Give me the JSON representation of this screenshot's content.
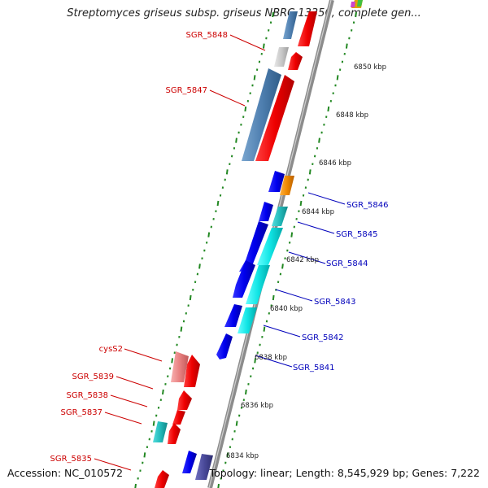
{
  "title": "Streptomyces griseus subsp. griseus NBRC 13350, complete gen...",
  "footer": {
    "accession": "Accession: NC_010572",
    "summary": "Topology: linear; Length: 8,545,929 bp; Genes: 7,222"
  },
  "colors": {
    "label_left": "#cc0000",
    "label_right": "#0000bb",
    "backbone": "#8c8c8c",
    "tick": "#228822",
    "red_gene": "#ee0000",
    "blue_gene": "#0000ee",
    "steel_gene": "#4f7fb0",
    "cyan_gene": "#11dddd",
    "teal_gene": "#22bbbb",
    "pink_gene": "#e88080",
    "orange_gene": "#ee8800",
    "gray_gene": "#c8c8c8",
    "indigo_gene": "#4a4a9a"
  },
  "scale_labels": [
    "6850 kbp",
    "6848 kbp",
    "6846 kbp",
    "6844 kbp",
    "6842 kbp",
    "6840 kbp",
    "6838 kbp",
    "6836 kbp",
    "6834 kbp"
  ],
  "gene_labels_left": [
    "SGR_5848",
    "SGR_5847",
    "cysS2",
    "SGR_5839",
    "SGR_5838",
    "SGR_5837",
    "SGR_5835"
  ],
  "gene_labels_right": [
    "SGR_5846",
    "SGR_5845",
    "SGR_5844",
    "SGR_5843",
    "SGR_5842",
    "SGR_5841"
  ]
}
